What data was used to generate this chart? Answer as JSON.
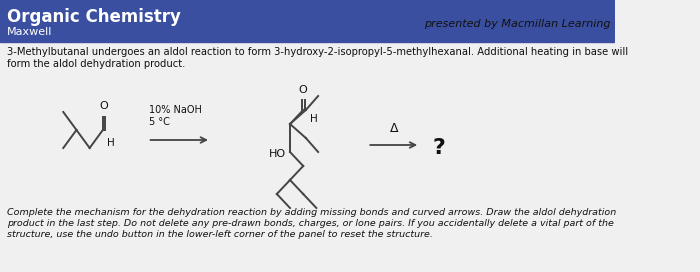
{
  "header_bg": "#3a4fa0",
  "header_text": "Organic Chemistry",
  "header_subtext": "Maxwell",
  "header_text_color": "#ffffff",
  "header_right_text": "presented by Macmillan Learning",
  "body_bg": "#f0f0f0",
  "question_text1": "3-Methylbutanal undergoes an aldol reaction to form 3-hydroxy-2-isopropyl-5-methylhexanal. Additional heating in base will",
  "question_text2": "form the aldol dehydration product.",
  "reagent_text": "10% NaOH\n5 °C",
  "delta_symbol": "Δ",
  "question_mark": "?",
  "footer_line1": "Complete the mechanism for the dehydration reaction by adding missing bonds and curved arrows. Draw the aldol dehydration",
  "footer_line2": "product in the last step. Do not delete any pre-drawn bonds, charges, or lone pairs. If you accidentally delete a vital part of the",
  "footer_line3": "structure, use the undo button in the lower-left corner of the panel to reset the structure.",
  "line_color": "#444444",
  "text_color": "#111111",
  "lw": 1.4,
  "figsize": [
    7.0,
    2.72
  ],
  "dpi": 100
}
